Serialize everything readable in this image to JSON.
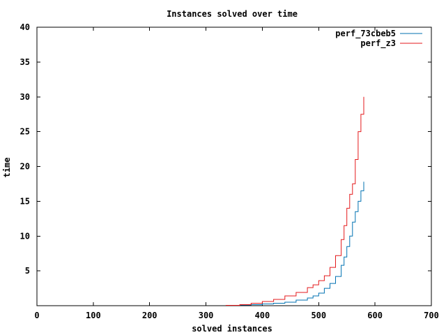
{
  "chart_data": {
    "type": "line",
    "title": "Instances solved over time",
    "xlabel": "solved instances",
    "ylabel": "time",
    "xlim": [
      0,
      700
    ],
    "ylim": [
      0,
      40
    ],
    "xticks": [
      0,
      100,
      200,
      300,
      400,
      500,
      600,
      700
    ],
    "yticks": [
      5,
      10,
      15,
      20,
      25,
      30,
      35,
      40
    ],
    "grid": false,
    "legend_position": "top-right",
    "series": [
      {
        "name": "perf_73cbeb5",
        "color": "#0072b2",
        "points": [
          [
            340,
            0.05
          ],
          [
            360,
            0.1
          ],
          [
            380,
            0.15
          ],
          [
            400,
            0.25
          ],
          [
            420,
            0.35
          ],
          [
            440,
            0.5
          ],
          [
            460,
            0.8
          ],
          [
            480,
            1.1
          ],
          [
            490,
            1.4
          ],
          [
            500,
            1.8
          ],
          [
            510,
            2.5
          ],
          [
            520,
            3.2
          ],
          [
            530,
            4.2
          ],
          [
            540,
            5.8
          ],
          [
            545,
            7.0
          ],
          [
            550,
            8.5
          ],
          [
            555,
            10.0
          ],
          [
            560,
            12.0
          ],
          [
            565,
            13.5
          ],
          [
            570,
            15.0
          ],
          [
            575,
            16.5
          ],
          [
            580,
            17.8
          ]
        ]
      },
      {
        "name": "perf_z3",
        "color": "#e41a1c",
        "points": [
          [
            335,
            0.05
          ],
          [
            360,
            0.15
          ],
          [
            380,
            0.35
          ],
          [
            400,
            0.6
          ],
          [
            420,
            0.9
          ],
          [
            440,
            1.4
          ],
          [
            460,
            1.9
          ],
          [
            480,
            2.6
          ],
          [
            490,
            3.0
          ],
          [
            500,
            3.6
          ],
          [
            510,
            4.3
          ],
          [
            520,
            5.5
          ],
          [
            530,
            7.2
          ],
          [
            540,
            9.5
          ],
          [
            545,
            11.5
          ],
          [
            550,
            14.0
          ],
          [
            555,
            16.0
          ],
          [
            560,
            17.5
          ],
          [
            565,
            21.0
          ],
          [
            570,
            25.0
          ],
          [
            575,
            27.5
          ],
          [
            580,
            30.0
          ]
        ]
      }
    ]
  }
}
